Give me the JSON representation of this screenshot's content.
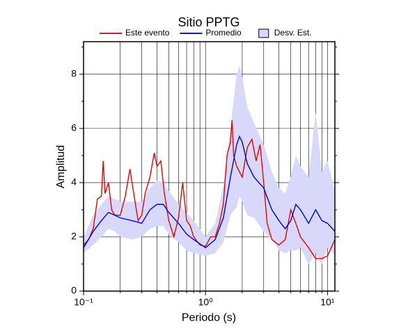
{
  "chart_data": {
    "type": "line",
    "title": "Sitio PPTG",
    "xlabel": "Periodo (s)",
    "ylabel": "Amplitud",
    "xscale": "log",
    "grid": true,
    "xlim": [
      0.1,
      11.5
    ],
    "ylim": [
      0,
      9.2
    ],
    "xticks": [
      {
        "value": 0.1,
        "label": "10⁻¹"
      },
      {
        "value": 1,
        "label": "10⁰"
      },
      {
        "value": 10,
        "label": "10¹"
      }
    ],
    "xminorticks": [
      0.2,
      0.3,
      0.4,
      0.5,
      0.6,
      0.7,
      0.8,
      0.9,
      2,
      3,
      4,
      5,
      6,
      7,
      8,
      9
    ],
    "yticks": [
      0,
      2,
      4,
      6,
      8
    ],
    "yminorticks": [
      1,
      3,
      5,
      7,
      9
    ],
    "series": [
      {
        "name": "Este evento",
        "color": "#ee0000",
        "x": [
          0.1,
          0.11,
          0.12,
          0.13,
          0.14,
          0.145,
          0.15,
          0.16,
          0.17,
          0.18,
          0.2,
          0.22,
          0.24,
          0.26,
          0.28,
          0.3,
          0.32,
          0.35,
          0.38,
          0.4,
          0.43,
          0.46,
          0.5,
          0.55,
          0.6,
          0.65,
          0.7,
          0.75,
          0.8,
          0.9,
          1.0,
          1.1,
          1.2,
          1.3,
          1.4,
          1.5,
          1.6,
          1.65,
          1.7,
          1.8,
          2.0,
          2.2,
          2.4,
          2.6,
          2.8,
          3.0,
          3.2,
          3.5,
          4.0,
          4.5,
          5.0,
          5.5,
          6.0,
          7.0,
          8.0,
          9.0,
          10,
          11.5
        ],
        "values": [
          1.7,
          1.9,
          2.3,
          3.4,
          3.5,
          4.8,
          3.6,
          4.0,
          3.0,
          2.8,
          2.8,
          3.5,
          4.5,
          3.5,
          2.6,
          2.8,
          3.6,
          4.2,
          5.1,
          4.6,
          4.8,
          3.6,
          2.6,
          2.0,
          2.7,
          4.0,
          2.6,
          2.4,
          2.0,
          1.7,
          1.65,
          2.0,
          2.0,
          2.5,
          3.2,
          5.0,
          5.5,
          6.3,
          5.0,
          4.6,
          4.2,
          5.3,
          5.6,
          4.8,
          5.4,
          4.0,
          2.5,
          1.9,
          1.7,
          1.9,
          3.0,
          2.5,
          2.0,
          1.6,
          1.2,
          1.2,
          1.3,
          1.9
        ]
      },
      {
        "name": "Promedio",
        "color": "#0000dd",
        "x": [
          0.1,
          0.12,
          0.14,
          0.16,
          0.18,
          0.2,
          0.25,
          0.3,
          0.35,
          0.4,
          0.45,
          0.5,
          0.6,
          0.7,
          0.8,
          1.0,
          1.2,
          1.4,
          1.6,
          1.8,
          1.9,
          2.0,
          2.2,
          2.5,
          3.0,
          3.5,
          4.0,
          4.5,
          5.0,
          5.5,
          6.0,
          7.0,
          8.0,
          9.0,
          10,
          11.5
        ],
        "values": [
          1.6,
          2.2,
          2.6,
          2.9,
          2.8,
          2.7,
          2.6,
          2.5,
          3.0,
          3.2,
          3.2,
          2.9,
          2.5,
          2.1,
          1.9,
          1.6,
          1.9,
          2.7,
          4.2,
          5.4,
          5.7,
          5.5,
          4.7,
          4.2,
          3.8,
          3.0,
          2.6,
          2.3,
          2.6,
          3.2,
          3.0,
          2.5,
          3.0,
          2.6,
          2.5,
          2.2
        ]
      }
    ],
    "band": {
      "name": "Desv. Est.",
      "color": "#d8d8fa",
      "x": [
        0.1,
        0.12,
        0.14,
        0.16,
        0.18,
        0.2,
        0.25,
        0.3,
        0.35,
        0.4,
        0.45,
        0.5,
        0.6,
        0.7,
        0.8,
        1.0,
        1.2,
        1.4,
        1.6,
        1.8,
        1.9,
        2.0,
        2.2,
        2.5,
        3.0,
        3.5,
        4.0,
        4.5,
        5.0,
        5.5,
        6.0,
        7.0,
        8.0,
        9.0,
        10,
        11.5
      ],
      "lower": [
        1.4,
        1.7,
        2.0,
        2.3,
        2.2,
        2.0,
        1.9,
        2.0,
        2.3,
        2.4,
        2.4,
        2.1,
        1.8,
        1.5,
        1.4,
        1.3,
        1.4,
        1.8,
        2.8,
        3.1,
        3.5,
        3.3,
        2.8,
        2.7,
        2.2,
        1.9,
        1.5,
        1.4,
        1.5,
        1.5,
        1.6,
        1.0,
        1.4,
        1.0,
        1.6,
        1.3
      ],
      "upper": [
        2.0,
        2.8,
        3.2,
        3.5,
        3.4,
        3.3,
        3.3,
        3.3,
        3.8,
        4.1,
        4.0,
        3.7,
        3.2,
        2.9,
        2.6,
        2.0,
        2.5,
        3.9,
        6.0,
        8.0,
        8.3,
        7.9,
        6.8,
        6.2,
        5.4,
        4.4,
        3.8,
        3.6,
        4.2,
        5.0,
        4.6,
        4.2,
        6.6,
        4.4,
        4.8,
        3.7
      ]
    }
  }
}
